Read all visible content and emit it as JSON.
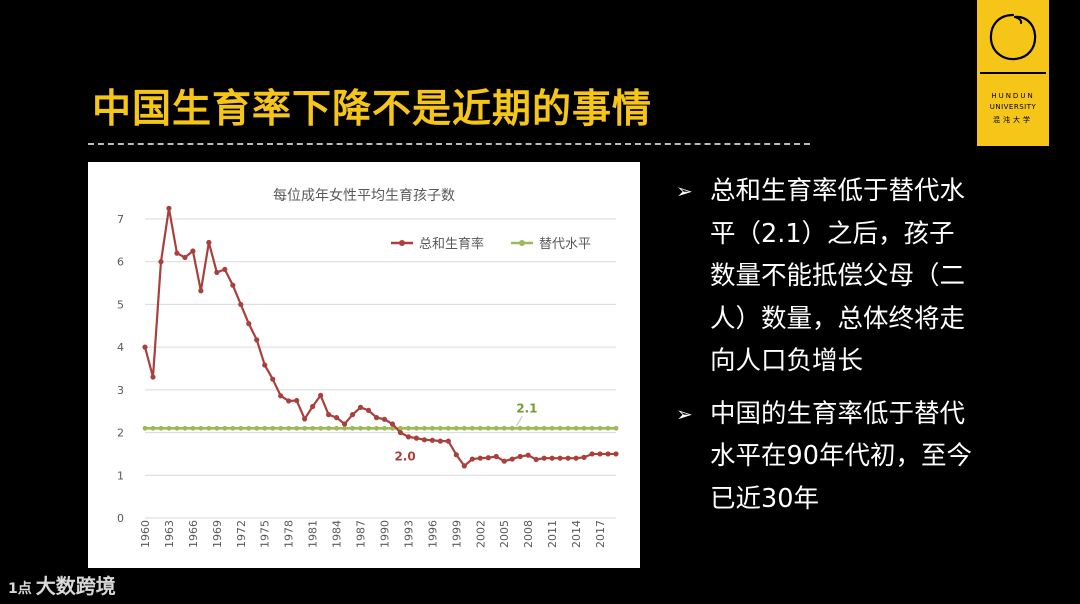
{
  "slide": {
    "title": "中国生育率下降不是近期的事情"
  },
  "logo": {
    "line1": "HUNDUN",
    "line2": "UNIVERSITY",
    "line3": "混沌大学",
    "color": "#F5C518"
  },
  "bullets": [
    {
      "icon": "arrow-right-icon",
      "marker": "➢",
      "text": "总和生育率低于替代水平（2.1）之后，孩子数量不能抵偿父母（二人）数量，总体终将走向人口负增长"
    },
    {
      "icon": "arrow-right-icon",
      "marker": "➢",
      "text": "中国的生育率低于替代水平在90年代初，至今已近30年"
    }
  ],
  "watermark": {
    "logo": "1点",
    "text": "大数跨境"
  },
  "chart_data": {
    "type": "line",
    "title": "每位成年女性平均生育孩子数",
    "xlabel": "",
    "ylabel": "",
    "ylim": [
      0,
      7
    ],
    "yticks": [
      "0",
      "1",
      "2",
      "3",
      "4",
      "5",
      "6",
      "7"
    ],
    "xticks": [
      "1960",
      "1963",
      "1966",
      "1969",
      "1972",
      "1975",
      "1978",
      "1981",
      "1984",
      "1987",
      "1990",
      "1993",
      "1996",
      "1999",
      "2002",
      "2005",
      "2008",
      "2011",
      "2014",
      "2017"
    ],
    "grid": true,
    "legend": "top-right",
    "x": [
      1960,
      1961,
      1962,
      1963,
      1964,
      1965,
      1966,
      1967,
      1968,
      1969,
      1970,
      1971,
      1972,
      1973,
      1974,
      1975,
      1976,
      1977,
      1978,
      1979,
      1980,
      1981,
      1982,
      1983,
      1984,
      1985,
      1986,
      1987,
      1988,
      1989,
      1990,
      1991,
      1992,
      1993,
      1994,
      1995,
      1996,
      1997,
      1998,
      1999,
      2000,
      2001,
      2002,
      2003,
      2004,
      2005,
      2006,
      2007,
      2008,
      2009,
      2010,
      2011,
      2012,
      2013,
      2014,
      2015,
      2016,
      2017,
      2018,
      2019
    ],
    "series": [
      {
        "name": "总和生育率",
        "color": "#A9403C",
        "values": [
          4.0,
          3.3,
          6.0,
          7.5,
          6.2,
          6.1,
          6.25,
          5.32,
          6.45,
          5.75,
          5.82,
          5.45,
          5.0,
          4.55,
          4.17,
          3.58,
          3.25,
          2.86,
          2.74,
          2.75,
          2.32,
          2.61,
          2.87,
          2.42,
          2.35,
          2.2,
          2.42,
          2.59,
          2.52,
          2.35,
          2.31,
          2.2,
          2.0,
          1.9,
          1.87,
          1.83,
          1.82,
          1.8,
          1.8,
          1.48,
          1.22,
          1.38,
          1.4,
          1.41,
          1.44,
          1.33,
          1.38,
          1.44,
          1.47,
          1.37,
          1.4,
          1.4,
          1.4,
          1.4,
          1.4,
          1.42,
          1.5,
          1.5,
          1.5,
          1.5
        ]
      },
      {
        "name": "替代水平",
        "color": "#9BBB59",
        "values": [
          2.1,
          2.1,
          2.1,
          2.1,
          2.1,
          2.1,
          2.1,
          2.1,
          2.1,
          2.1,
          2.1,
          2.1,
          2.1,
          2.1,
          2.1,
          2.1,
          2.1,
          2.1,
          2.1,
          2.1,
          2.1,
          2.1,
          2.1,
          2.1,
          2.1,
          2.1,
          2.1,
          2.1,
          2.1,
          2.1,
          2.1,
          2.1,
          2.1,
          2.1,
          2.1,
          2.1,
          2.1,
          2.1,
          2.1,
          2.1,
          2.1,
          2.1,
          2.1,
          2.1,
          2.1,
          2.1,
          2.1,
          2.1,
          2.1,
          2.1,
          2.1,
          2.1,
          2.1,
          2.1,
          2.1,
          2.1,
          2.1,
          2.1,
          2.1,
          2.1
        ]
      }
    ],
    "annotations": [
      {
        "text": "2.1",
        "x": 2004,
        "y": 2.1,
        "color": "#7A9A3A"
      },
      {
        "text": "2.0",
        "x": 1992,
        "y": 2.0,
        "color": "#A9403C"
      }
    ]
  }
}
